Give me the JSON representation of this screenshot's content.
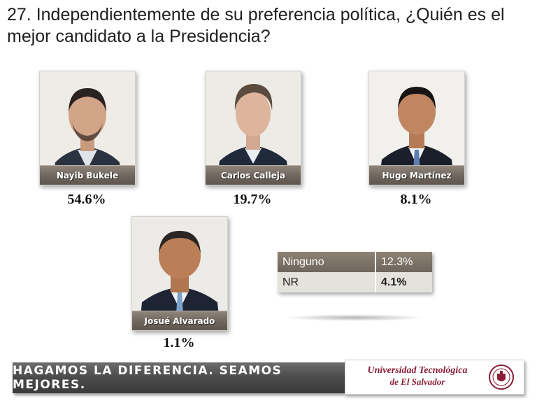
{
  "question": "27. Independientemente de su preferencia política, ¿Quién es el mejor candidato a la Presidencia?",
  "chart_data": {
    "type": "table",
    "categories": [
      "Nayib Bukele",
      "Carlos Calleja",
      "Hugo Martínez",
      "Josué Alvarado",
      "Ninguno",
      "NR"
    ],
    "values": [
      54.6,
      19.7,
      8.1,
      1.1,
      12.3,
      4.1
    ],
    "unit": "%"
  },
  "candidates": [
    {
      "name": "Nayib Bukele",
      "pct": "54.6%"
    },
    {
      "name": "Carlos Calleja",
      "pct": "19.7%"
    },
    {
      "name": "Hugo Martínez",
      "pct": "8.1%"
    },
    {
      "name": "Josué Alvarado",
      "pct": "1.1%"
    }
  ],
  "other_table": [
    {
      "label": "Ninguno",
      "value": "12.3%"
    },
    {
      "label": "NR",
      "value": "4.1%"
    }
  ],
  "footer": {
    "slogan": "HAGAMOS LA DIFERENCIA. SEAMOS MEJORES.",
    "university_line1": "Universidad Tecnológica",
    "university_line2": "de El Salvador"
  },
  "colors": {
    "nameplate": "#7a7065",
    "table_highlight": "#7d7368",
    "banner": "#4d4d4d",
    "university": "#8a1c35"
  },
  "icons": [
    "portrait-photo",
    "university-seal"
  ]
}
